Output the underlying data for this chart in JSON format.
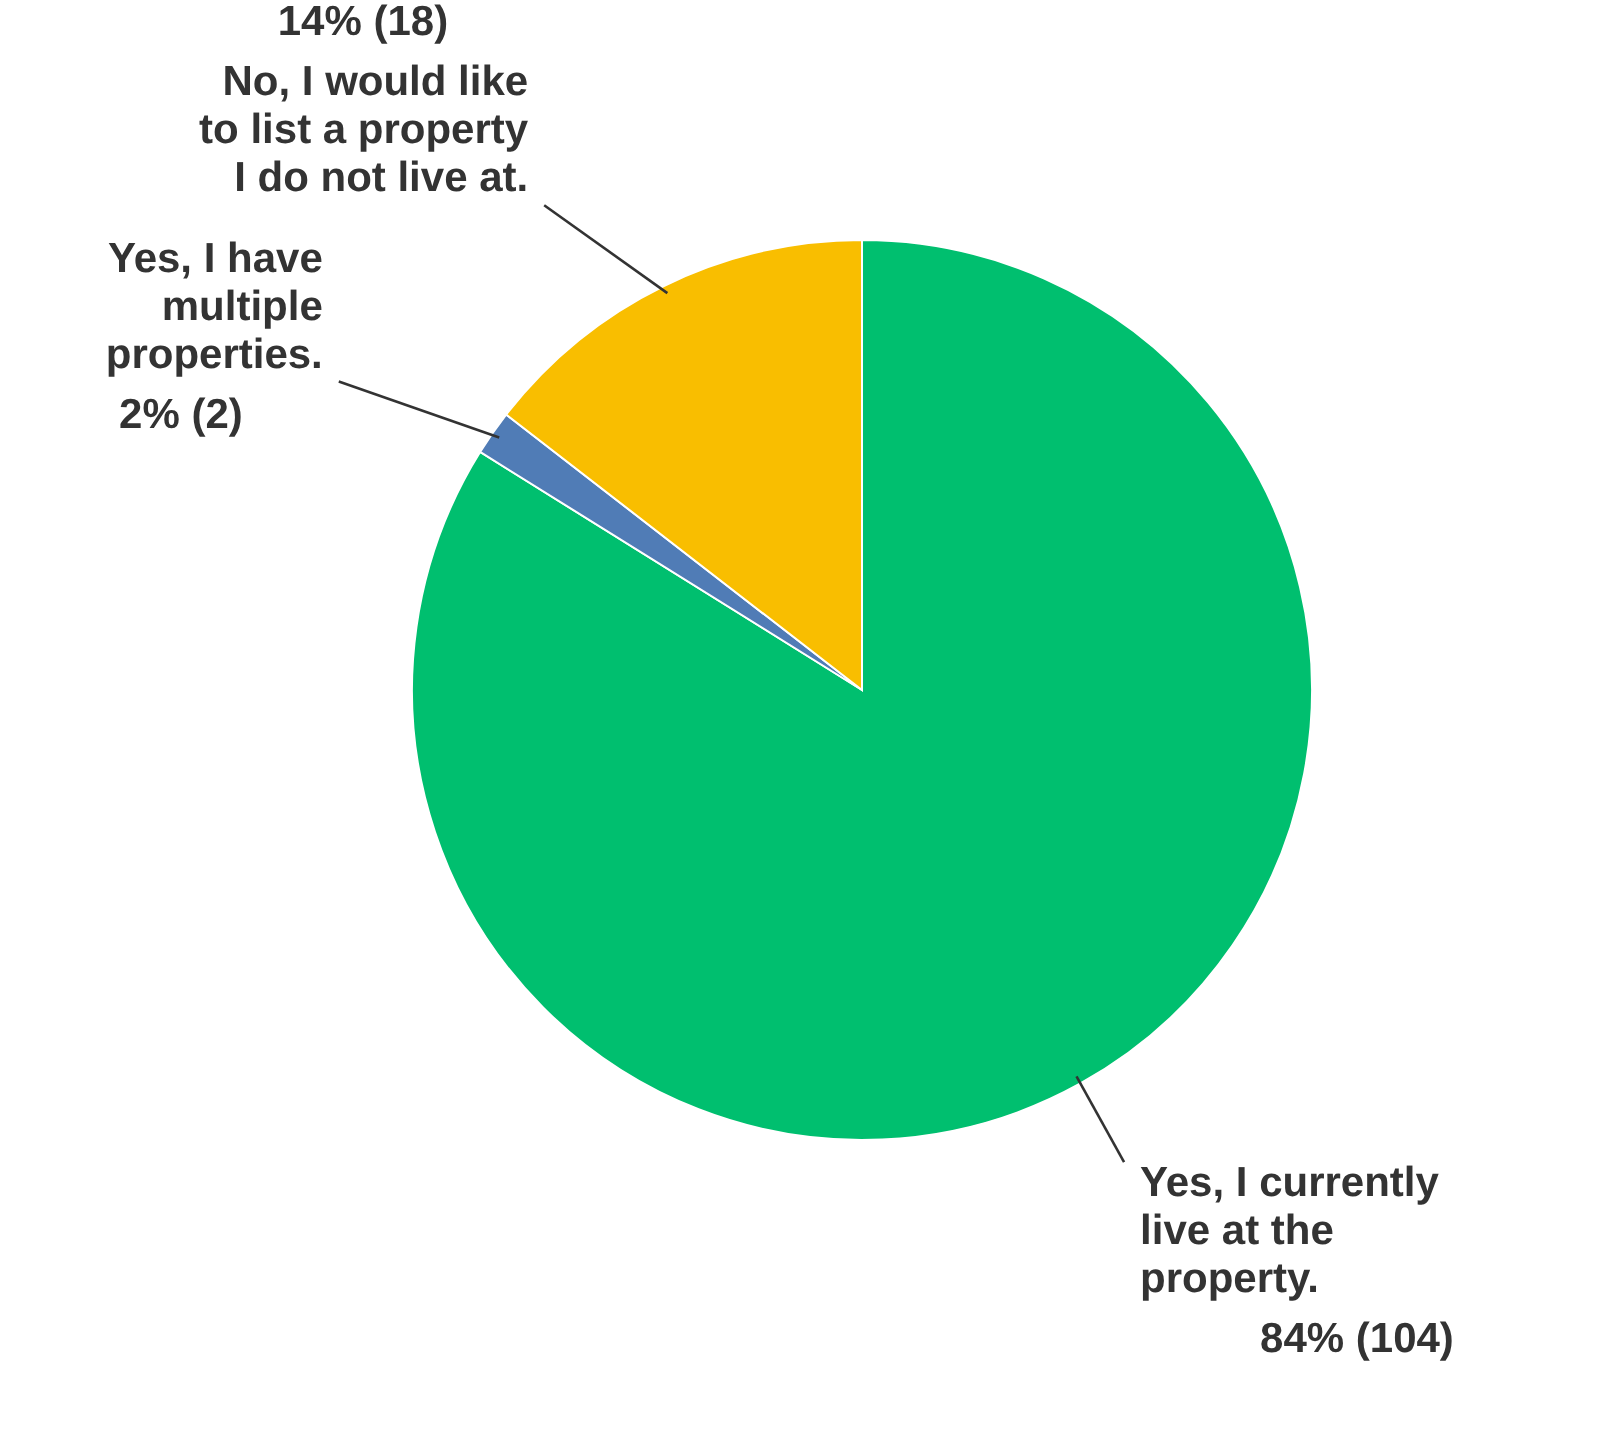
{
  "chart_data": {
    "type": "pie",
    "categories": [
      "Yes, I currently live at the property.",
      "Yes, I have multiple properties.",
      "No, I would like to list a property I do not live at."
    ],
    "values": [
      104,
      2,
      18
    ],
    "value_labels": [
      "84% (104)",
      "2% (2)",
      "14% (18)"
    ],
    "colors": [
      "#00bf6f",
      "#507cb6",
      "#f9be00"
    ]
  }
}
